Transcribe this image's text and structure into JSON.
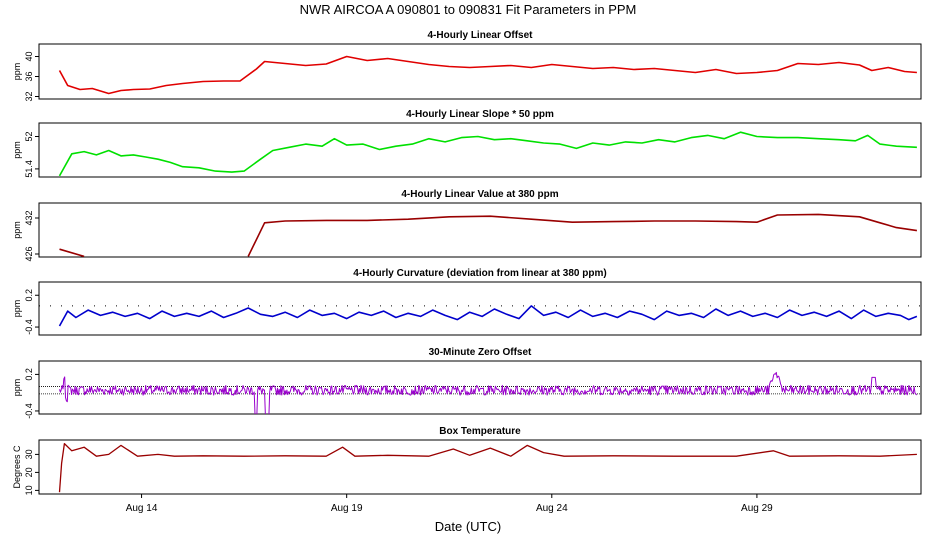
{
  "chart_data": {
    "type": "line",
    "title": "NWR   AIRCOA A   090801 to 090831   Fit Parameters in PPM",
    "xlabel": "Date (UTC)",
    "x_range_days": [
      11.5,
      33.0
    ],
    "x_ticks": [
      {
        "day": 14,
        "label": "Aug 14"
      },
      {
        "day": 19,
        "label": "Aug 19"
      },
      {
        "day": 24,
        "label": "Aug 24"
      },
      {
        "day": 29,
        "label": "Aug 29"
      }
    ],
    "panels": [
      {
        "title": "4-Hourly Linear Offset",
        "ylabel": "ppm",
        "ylim": [
          31.5,
          42.5
        ],
        "yticks": [
          32,
          36,
          40
        ],
        "color": "#e00000",
        "series": [
          [
            12.0,
            37.2
          ],
          [
            12.2,
            34.2
          ],
          [
            12.5,
            33.4
          ],
          [
            12.8,
            33.6
          ],
          [
            13.2,
            32.6
          ],
          [
            13.5,
            33.2
          ],
          [
            13.8,
            33.4
          ],
          [
            14.2,
            33.5
          ],
          [
            14.6,
            34.2
          ],
          [
            15.0,
            34.6
          ],
          [
            15.5,
            35.0
          ],
          [
            16.0,
            35.1
          ],
          [
            16.4,
            35.1
          ],
          [
            16.8,
            37.5
          ],
          [
            17.0,
            39.0
          ],
          [
            17.5,
            38.6
          ],
          [
            18.0,
            38.2
          ],
          [
            18.5,
            38.5
          ],
          [
            19.0,
            40.0
          ],
          [
            19.5,
            39.2
          ],
          [
            20.0,
            39.6
          ],
          [
            20.5,
            39.0
          ],
          [
            21.0,
            38.4
          ],
          [
            21.5,
            38.0
          ],
          [
            22.0,
            37.8
          ],
          [
            22.5,
            38.0
          ],
          [
            23.0,
            38.2
          ],
          [
            23.5,
            37.8
          ],
          [
            24.0,
            38.4
          ],
          [
            24.5,
            38.0
          ],
          [
            25.0,
            37.6
          ],
          [
            25.5,
            37.8
          ],
          [
            26.0,
            37.4
          ],
          [
            26.5,
            37.6
          ],
          [
            27.0,
            37.2
          ],
          [
            27.5,
            36.8
          ],
          [
            28.0,
            37.4
          ],
          [
            28.5,
            36.6
          ],
          [
            29.0,
            36.8
          ],
          [
            29.5,
            37.2
          ],
          [
            30.0,
            38.6
          ],
          [
            30.5,
            38.4
          ],
          [
            31.0,
            38.8
          ],
          [
            31.5,
            38.3
          ],
          [
            31.8,
            37.2
          ],
          [
            32.2,
            37.8
          ],
          [
            32.6,
            37.0
          ],
          [
            32.9,
            36.8
          ]
        ]
      },
      {
        "title": "4-Hourly Linear Slope * 50 ppm",
        "ylabel": "ppm",
        "ylim": [
          51.25,
          52.25
        ],
        "yticks": [
          51.4,
          52.0
        ],
        "color": "#00e000",
        "series": [
          [
            12.0,
            51.27
          ],
          [
            12.3,
            51.68
          ],
          [
            12.6,
            51.72
          ],
          [
            12.9,
            51.66
          ],
          [
            13.2,
            51.74
          ],
          [
            13.5,
            51.64
          ],
          [
            13.8,
            51.66
          ],
          [
            14.1,
            51.62
          ],
          [
            14.4,
            51.58
          ],
          [
            14.7,
            51.52
          ],
          [
            15.0,
            51.44
          ],
          [
            15.4,
            51.42
          ],
          [
            15.8,
            51.36
          ],
          [
            16.2,
            51.34
          ],
          [
            16.5,
            51.36
          ],
          [
            16.9,
            51.58
          ],
          [
            17.2,
            51.74
          ],
          [
            17.6,
            51.8
          ],
          [
            18.0,
            51.86
          ],
          [
            18.4,
            51.82
          ],
          [
            18.7,
            51.96
          ],
          [
            19.0,
            51.84
          ],
          [
            19.4,
            51.86
          ],
          [
            19.8,
            51.76
          ],
          [
            20.2,
            51.82
          ],
          [
            20.6,
            51.86
          ],
          [
            21.0,
            51.96
          ],
          [
            21.4,
            51.9
          ],
          [
            21.8,
            51.98
          ],
          [
            22.2,
            52.0
          ],
          [
            22.6,
            51.94
          ],
          [
            23.0,
            51.96
          ],
          [
            23.4,
            51.92
          ],
          [
            23.8,
            51.88
          ],
          [
            24.2,
            51.86
          ],
          [
            24.6,
            51.78
          ],
          [
            25.0,
            51.88
          ],
          [
            25.4,
            51.84
          ],
          [
            25.8,
            51.9
          ],
          [
            26.2,
            51.88
          ],
          [
            26.6,
            51.94
          ],
          [
            27.0,
            51.9
          ],
          [
            27.4,
            51.98
          ],
          [
            27.8,
            52.02
          ],
          [
            28.2,
            51.96
          ],
          [
            28.6,
            52.08
          ],
          [
            29.0,
            52.0
          ],
          [
            29.5,
            51.98
          ],
          [
            30.0,
            51.98
          ],
          [
            30.5,
            51.96
          ],
          [
            31.0,
            51.94
          ],
          [
            31.4,
            51.92
          ],
          [
            31.7,
            52.02
          ],
          [
            32.0,
            51.86
          ],
          [
            32.4,
            51.82
          ],
          [
            32.9,
            51.8
          ]
        ]
      },
      {
        "title": "4-Hourly Linear Value at 380 ppm",
        "ylabel": "ppm",
        "ylim": [
          425.5,
          434.5
        ],
        "yticks": [
          426,
          432
        ],
        "color": "#990000",
        "segments": [
          [
            [
              12.0,
              426.8
            ],
            [
              12.6,
              425.6
            ]
          ],
          [
            [
              16.6,
              425.6
            ],
            [
              17.0,
              431.2
            ],
            [
              17.5,
              431.5
            ],
            [
              18.5,
              431.6
            ],
            [
              19.5,
              431.6
            ],
            [
              20.5,
              431.8
            ],
            [
              21.5,
              432.2
            ],
            [
              22.5,
              432.3
            ],
            [
              23.5,
              431.8
            ],
            [
              24.5,
              431.3
            ],
            [
              25.5,
              431.4
            ],
            [
              26.5,
              431.5
            ],
            [
              27.5,
              431.5
            ],
            [
              28.5,
              431.4
            ],
            [
              29.0,
              431.3
            ],
            [
              29.5,
              432.5
            ],
            [
              30.5,
              432.6
            ],
            [
              31.5,
              432.2
            ],
            [
              32.0,
              431.2
            ],
            [
              32.4,
              430.4
            ],
            [
              32.9,
              429.9
            ]
          ]
        ]
      },
      {
        "title": "4-Hourly Curvature (deviation from linear at 380 ppm)",
        "ylabel": "ppm",
        "ylim": [
          -0.55,
          0.45
        ],
        "yticks": [
          -0.4,
          0.2
        ],
        "color": "#0000cc",
        "series": [
          [
            12.0,
            -0.38
          ],
          [
            12.2,
            -0.1
          ],
          [
            12.4,
            -0.22
          ],
          [
            12.7,
            -0.08
          ],
          [
            13.0,
            -0.18
          ],
          [
            13.3,
            -0.12
          ],
          [
            13.6,
            -0.2
          ],
          [
            13.9,
            -0.14
          ],
          [
            14.2,
            -0.24
          ],
          [
            14.5,
            -0.1
          ],
          [
            14.8,
            -0.2
          ],
          [
            15.1,
            -0.14
          ],
          [
            15.4,
            -0.2
          ],
          [
            15.7,
            -0.1
          ],
          [
            16.0,
            -0.22
          ],
          [
            16.3,
            -0.14
          ],
          [
            16.6,
            -0.04
          ],
          [
            16.9,
            -0.16
          ],
          [
            17.2,
            -0.2
          ],
          [
            17.5,
            -0.12
          ],
          [
            17.8,
            -0.22
          ],
          [
            18.1,
            -0.08
          ],
          [
            18.4,
            -0.18
          ],
          [
            18.7,
            -0.14
          ],
          [
            19.0,
            -0.24
          ],
          [
            19.3,
            -0.12
          ],
          [
            19.6,
            -0.18
          ],
          [
            19.9,
            -0.1
          ],
          [
            20.2,
            -0.22
          ],
          [
            20.5,
            -0.14
          ],
          [
            20.8,
            -0.2
          ],
          [
            21.1,
            -0.08
          ],
          [
            21.4,
            -0.18
          ],
          [
            21.7,
            -0.26
          ],
          [
            22.0,
            -0.12
          ],
          [
            22.3,
            -0.2
          ],
          [
            22.6,
            -0.06
          ],
          [
            22.9,
            -0.16
          ],
          [
            23.2,
            -0.24
          ],
          [
            23.5,
            0.0
          ],
          [
            23.8,
            -0.18
          ],
          [
            24.1,
            -0.12
          ],
          [
            24.4,
            -0.22
          ],
          [
            24.7,
            -0.08
          ],
          [
            25.0,
            -0.2
          ],
          [
            25.3,
            -0.14
          ],
          [
            25.6,
            -0.22
          ],
          [
            25.9,
            -0.1
          ],
          [
            26.2,
            -0.16
          ],
          [
            26.5,
            -0.26
          ],
          [
            26.8,
            -0.1
          ],
          [
            27.1,
            -0.18
          ],
          [
            27.4,
            -0.14
          ],
          [
            27.7,
            -0.22
          ],
          [
            28.0,
            -0.06
          ],
          [
            28.3,
            -0.18
          ],
          [
            28.6,
            -0.1
          ],
          [
            28.9,
            -0.2
          ],
          [
            29.2,
            -0.14
          ],
          [
            29.5,
            -0.22
          ],
          [
            29.8,
            -0.08
          ],
          [
            30.1,
            -0.18
          ],
          [
            30.4,
            -0.12
          ],
          [
            30.7,
            -0.2
          ],
          [
            31.0,
            -0.1
          ],
          [
            31.3,
            -0.24
          ],
          [
            31.6,
            -0.08
          ],
          [
            31.9,
            -0.2
          ],
          [
            32.2,
            -0.14
          ],
          [
            32.5,
            -0.18
          ],
          [
            32.7,
            -0.26
          ],
          [
            32.9,
            -0.2
          ]
        ]
      },
      {
        "title": "30-Minute Zero Offset",
        "ylabel": "ppm",
        "ylim": [
          -0.45,
          0.42
        ],
        "yticks": [
          -0.4,
          0.2
        ],
        "color": "#9900cc",
        "ref_lines": [
          0.0,
          -0.12
        ]
      },
      {
        "title": "Box Temperature",
        "ylabel": "Degrees C",
        "ylim": [
          8,
          38
        ],
        "yticks": [
          10,
          20,
          30
        ],
        "color": "#990000",
        "series": [
          [
            12.0,
            9.0
          ],
          [
            12.05,
            25.0
          ],
          [
            12.12,
            36.0
          ],
          [
            12.3,
            32.0
          ],
          [
            12.6,
            34.0
          ],
          [
            12.9,
            29.0
          ],
          [
            13.2,
            30.0
          ],
          [
            13.5,
            35.0
          ],
          [
            13.9,
            29.0
          ],
          [
            14.4,
            30.0
          ],
          [
            14.8,
            29.0
          ],
          [
            15.5,
            29.2
          ],
          [
            16.5,
            29.0
          ],
          [
            17.5,
            29.2
          ],
          [
            18.5,
            29.0
          ],
          [
            18.9,
            34.0
          ],
          [
            19.2,
            29.0
          ],
          [
            20.0,
            29.5
          ],
          [
            21.0,
            29.0
          ],
          [
            21.6,
            33.0
          ],
          [
            22.0,
            29.5
          ],
          [
            22.5,
            33.5
          ],
          [
            23.0,
            29.0
          ],
          [
            23.4,
            35.0
          ],
          [
            23.8,
            31.0
          ],
          [
            24.3,
            29.0
          ],
          [
            25.5,
            29.2
          ],
          [
            27.0,
            29.0
          ],
          [
            28.5,
            29.0
          ],
          [
            29.4,
            32.0
          ],
          [
            29.8,
            29.0
          ],
          [
            31.0,
            29.2
          ],
          [
            32.0,
            29.0
          ],
          [
            32.9,
            30.0
          ]
        ]
      }
    ]
  }
}
